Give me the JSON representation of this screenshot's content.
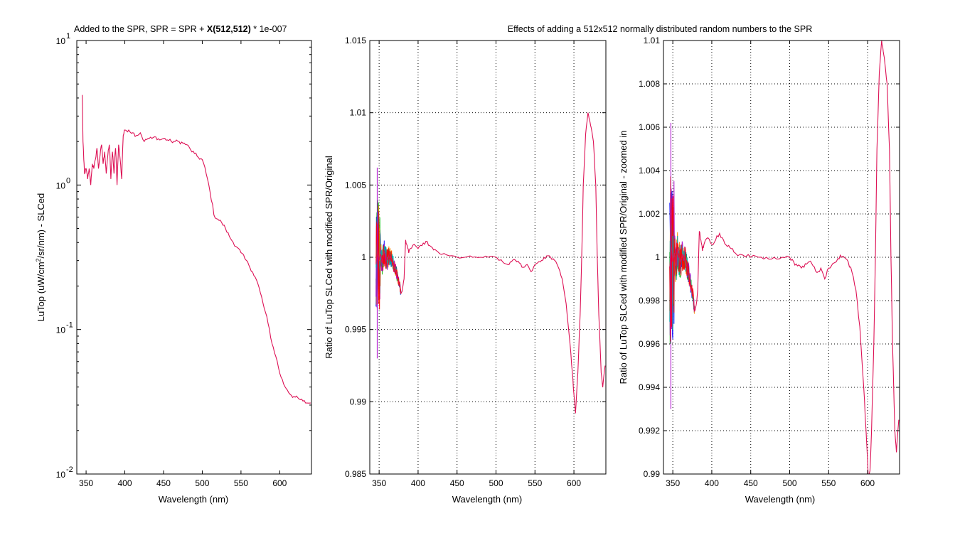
{
  "figure_title": "Effects of adding a 512x512 normally distributed random numbers to the SPR",
  "colors": {
    "series_main": "#dd1155",
    "noise_colors": [
      "#0000ff",
      "#00bb00",
      "#ff8800",
      "#aa00cc",
      "#00aaaa",
      "#ff0000"
    ],
    "grid": "#000000",
    "axes": "#000000"
  },
  "chart_data": [
    {
      "type": "line",
      "scale_y": "log",
      "title_parts": {
        "prefix": "Added to the SPR, SPR = SPR + ",
        "bold": "X(512,512)",
        "suffix": " * 1e-007"
      },
      "xlabel": "Wavelength (nm)",
      "ylabel_parts": {
        "before": "LuTop (uW/cm",
        "sup": "2",
        "after": "/sr/nm) - SLCed"
      },
      "xlim": [
        338,
        641
      ],
      "ylim": [
        0.01,
        10
      ],
      "grid": false,
      "xticks": [
        350,
        400,
        450,
        500,
        550,
        600
      ],
      "xtick_labels": [
        "350",
        "400",
        "450",
        "500",
        "550",
        "600"
      ],
      "yticks": [
        {
          "value": 10,
          "base": "10",
          "exp": "1"
        },
        {
          "value": 1,
          "base": "10",
          "exp": "0"
        },
        {
          "value": 0.1,
          "base": "10",
          "exp": "-1"
        },
        {
          "value": 0.01,
          "base": "10",
          "exp": "-2"
        }
      ],
      "series": [
        {
          "x": [
            345,
            346,
            347,
            348,
            350,
            352,
            354,
            356,
            358,
            360,
            362,
            364,
            366,
            368,
            370,
            372,
            374,
            376,
            378,
            380,
            382,
            384,
            386,
            388,
            390,
            392,
            394,
            396,
            398,
            400,
            405,
            410,
            415,
            420,
            425,
            430,
            435,
            440,
            445,
            450,
            455,
            460,
            465,
            470,
            475,
            480,
            485,
            490,
            495,
            500,
            505,
            510,
            515,
            520,
            525,
            530,
            535,
            540,
            545,
            550,
            555,
            560,
            565,
            570,
            575,
            580,
            585,
            590,
            595,
            600,
            605,
            610,
            615,
            620,
            625,
            630,
            635,
            640
          ],
          "y": [
            4.2,
            2.0,
            1.5,
            1.2,
            1.3,
            1.1,
            1.3,
            1.0,
            1.4,
            1.3,
            1.5,
            1.8,
            1.3,
            1.6,
            1.9,
            1.4,
            1.7,
            1.2,
            1.6,
            1.9,
            1.1,
            1.7,
            1.2,
            1.8,
            1.0,
            1.9,
            1.5,
            1.1,
            2.2,
            2.4,
            2.4,
            2.3,
            2.2,
            2.3,
            2.0,
            2.1,
            2.1,
            2.15,
            2.05,
            2.1,
            2.05,
            2.0,
            2.0,
            2.0,
            1.95,
            1.9,
            1.75,
            1.65,
            1.55,
            1.5,
            1.2,
            0.9,
            0.62,
            0.58,
            0.55,
            0.5,
            0.44,
            0.4,
            0.37,
            0.34,
            0.31,
            0.28,
            0.25,
            0.22,
            0.18,
            0.14,
            0.11,
            0.08,
            0.065,
            0.05,
            0.042,
            0.038,
            0.035,
            0.034,
            0.033,
            0.032,
            0.031,
            0.031
          ]
        }
      ]
    },
    {
      "type": "line",
      "scale_y": "linear",
      "xlabel": "Wavelength (nm)",
      "ylabel": "Ratio of LuTop SLCed with modified SPR/Original",
      "xlim": [
        338,
        641
      ],
      "ylim": [
        0.985,
        1.015
      ],
      "grid": true,
      "xticks": [
        350,
        400,
        450,
        500,
        550,
        600
      ],
      "xtick_labels": [
        "350",
        "400",
        "450",
        "500",
        "550",
        "600"
      ],
      "yticks": [
        0.985,
        0.99,
        0.995,
        1,
        1.005,
        1.01,
        1.015
      ],
      "ytick_labels": [
        "0.985",
        "0.99",
        "0.995",
        "1",
        "1.005",
        "1.01",
        "1.015"
      ],
      "series": [
        {
          "x": [
            346,
            348,
            350,
            352,
            354,
            356,
            358,
            360,
            362,
            364,
            366,
            368,
            370,
            372,
            374,
            376,
            378,
            380,
            382,
            384,
            386,
            388,
            390,
            395,
            400,
            405,
            410,
            415,
            420,
            425,
            430,
            440,
            450,
            460,
            470,
            480,
            490,
            500,
            505,
            510,
            515,
            520,
            525,
            530,
            535,
            540,
            545,
            550,
            555,
            560,
            565,
            570,
            575,
            580,
            585,
            590,
            595,
            598,
            600,
            602,
            605,
            608,
            610,
            612,
            615,
            618,
            620,
            622,
            625,
            628,
            630,
            632,
            635,
            637,
            640
          ],
          "y": [
            0.9995,
            1.0005,
            0.9998,
            1.0002,
            0.9996,
            1.0004,
            1.0,
            0.9998,
            1.0001,
            1.0,
            0.9999,
            0.9996,
            0.9993,
            0.999,
            0.9985,
            0.9982,
            0.9975,
            0.9978,
            0.9985,
            1.0012,
            1.0008,
            1.0003,
            1.0006,
            1.0009,
            1.0006,
            1.0008,
            1.0011,
            1.0008,
            1.0005,
            1.0004,
            1.0002,
            1.0001,
            1.0,
            1.0,
            1.0,
            1.0,
            1.0,
            1.0,
            0.9998,
            0.9996,
            0.9995,
            0.9997,
            0.9998,
            0.9996,
            0.9993,
            0.9995,
            0.999,
            0.9995,
            0.9997,
            0.9998,
            1.0001,
            1.0,
            0.9998,
            0.9993,
            0.9985,
            0.9968,
            0.994,
            0.992,
            0.9905,
            0.9892,
            0.992,
            0.996,
            1.0,
            1.005,
            1.0085,
            1.01,
            1.0095,
            1.009,
            1.008,
            1.005,
            1.0,
            0.996,
            0.992,
            0.991,
            0.9925
          ]
        }
      ]
    },
    {
      "type": "line",
      "scale_y": "linear",
      "xlabel": "Wavelength (nm)",
      "ylabel": "Ratio of LuTop SLCed with modified SPR/Original - zoomed in",
      "xlim": [
        338,
        641
      ],
      "ylim": [
        0.99,
        1.01
      ],
      "grid": true,
      "xticks": [
        350,
        400,
        450,
        500,
        550,
        600
      ],
      "xtick_labels": [
        "350",
        "400",
        "450",
        "500",
        "550",
        "600"
      ],
      "yticks": [
        0.99,
        0.992,
        0.994,
        0.996,
        0.998,
        1,
        1.002,
        1.004,
        1.006,
        1.008,
        1.01
      ],
      "ytick_labels": [
        "0.99",
        "0.992",
        "0.994",
        "0.996",
        "0.998",
        "1",
        "1.002",
        "1.004",
        "1.006",
        "1.008",
        "1.01"
      ],
      "series": [
        {
          "x": [
            346,
            348,
            350,
            352,
            354,
            356,
            358,
            360,
            362,
            364,
            366,
            368,
            370,
            372,
            374,
            376,
            378,
            380,
            382,
            384,
            386,
            388,
            390,
            395,
            400,
            405,
            410,
            415,
            420,
            425,
            430,
            440,
            450,
            460,
            470,
            480,
            490,
            500,
            505,
            510,
            515,
            520,
            525,
            530,
            535,
            540,
            545,
            550,
            555,
            560,
            565,
            570,
            575,
            580,
            585,
            590,
            595,
            598,
            600,
            602,
            605,
            608,
            610,
            612,
            615,
            618,
            620,
            622,
            625,
            628,
            630,
            632,
            635,
            637,
            640
          ],
          "y": [
            0.9995,
            1.0005,
            0.9998,
            1.0002,
            0.9996,
            1.0004,
            1.0,
            0.9998,
            1.0001,
            1.0,
            0.9999,
            0.9996,
            0.9993,
            0.999,
            0.9985,
            0.9982,
            0.9975,
            0.9978,
            0.9985,
            1.0012,
            1.0008,
            1.0003,
            1.0006,
            1.0009,
            1.0006,
            1.0008,
            1.0011,
            1.0008,
            1.0005,
            1.0004,
            1.0002,
            1.0001,
            1.0,
            1.0,
            1.0,
            1.0,
            1.0,
            1.0,
            0.9998,
            0.9996,
            0.9995,
            0.9997,
            0.9998,
            0.9996,
            0.9993,
            0.9995,
            0.999,
            0.9995,
            0.9997,
            0.9998,
            1.0001,
            1.0,
            0.9998,
            0.9993,
            0.9985,
            0.9968,
            0.994,
            0.992,
            0.9905,
            0.9892,
            0.992,
            0.996,
            1.0,
            1.005,
            1.0085,
            1.01,
            1.0095,
            1.009,
            1.008,
            1.005,
            1.0,
            0.996,
            0.992,
            0.991,
            0.9925
          ]
        }
      ]
    }
  ]
}
